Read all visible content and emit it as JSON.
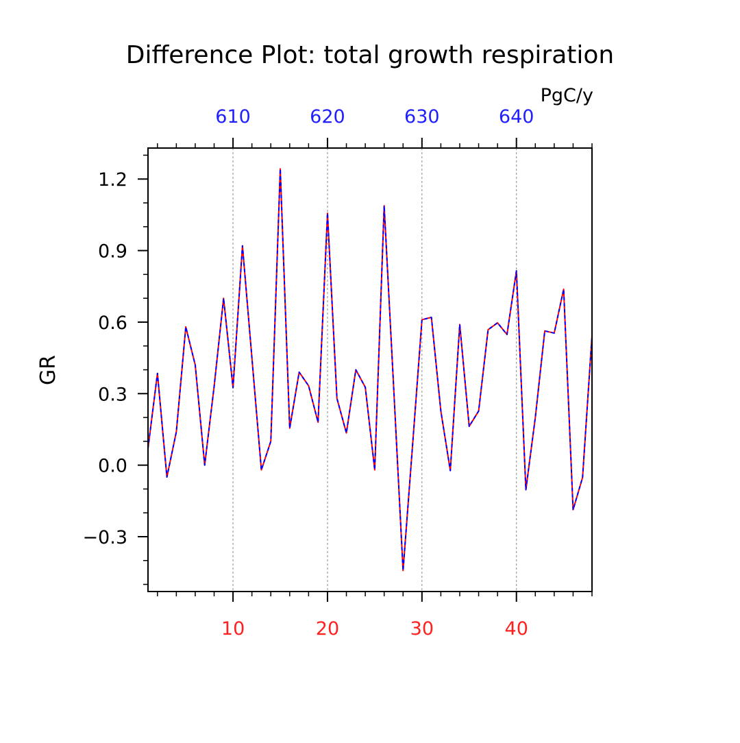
{
  "chart_data": {
    "type": "line",
    "title": "Difference Plot: total growth respiration",
    "units": "PgC/y",
    "ylabel": "GR",
    "xlabel": "",
    "xlim": [
      1,
      48
    ],
    "ylim": [
      -0.53,
      1.33
    ],
    "x_ticks": [
      10,
      20,
      30,
      40
    ],
    "x_tick_labels": [
      "10",
      "20",
      "30",
      "40"
    ],
    "top_tick_labels": [
      "610",
      "620",
      "630",
      "640"
    ],
    "top_axis_offset": 600,
    "y_ticks": [
      -0.3,
      0.0,
      0.3,
      0.6,
      0.9,
      1.2
    ],
    "y_tick_labels": [
      "−0.3",
      "0.0",
      "0.3",
      "0.6",
      "0.9",
      "1.2"
    ],
    "grid": "vertical dotted at major x ticks",
    "x": [
      1,
      2,
      3,
      4,
      5,
      6,
      7,
      8,
      9,
      10,
      11,
      12,
      13,
      14,
      15,
      16,
      17,
      18,
      19,
      20,
      21,
      22,
      23,
      24,
      25,
      26,
      27,
      28,
      29,
      30,
      31,
      32,
      33,
      34,
      35,
      36,
      37,
      38,
      39,
      40,
      41,
      42,
      43,
      44,
      45,
      46,
      47,
      48
    ],
    "series": [
      {
        "name": "series-red",
        "color": "#ff0000",
        "style": "solid",
        "values": [
          0.07,
          0.385,
          -0.05,
          0.14,
          0.58,
          0.42,
          0.0,
          0.33,
          0.7,
          0.325,
          0.92,
          0.45,
          -0.02,
          0.1,
          1.243,
          0.155,
          0.39,
          0.333,
          0.18,
          1.057,
          0.28,
          0.135,
          0.4,
          0.327,
          -0.02,
          1.088,
          0.33,
          -0.442,
          0.08,
          0.61,
          0.62,
          0.227,
          -0.023,
          0.59,
          0.163,
          0.227,
          0.568,
          0.597,
          0.548,
          0.815,
          -0.103,
          0.2,
          0.563,
          0.554,
          0.738,
          -0.187,
          -0.052,
          0.543
        ]
      },
      {
        "name": "series-blue",
        "color": "#0000ff",
        "style": "dashed",
        "values": [
          0.07,
          0.385,
          -0.05,
          0.14,
          0.58,
          0.42,
          0.0,
          0.33,
          0.7,
          0.325,
          0.92,
          0.45,
          -0.02,
          0.1,
          1.243,
          0.155,
          0.39,
          0.333,
          0.18,
          1.057,
          0.28,
          0.135,
          0.4,
          0.327,
          -0.02,
          1.088,
          0.33,
          -0.442,
          0.08,
          0.61,
          0.62,
          0.227,
          -0.023,
          0.59,
          0.163,
          0.227,
          0.568,
          0.597,
          0.548,
          0.815,
          -0.103,
          0.2,
          0.563,
          0.554,
          0.738,
          -0.187,
          -0.052,
          0.543
        ]
      }
    ]
  }
}
